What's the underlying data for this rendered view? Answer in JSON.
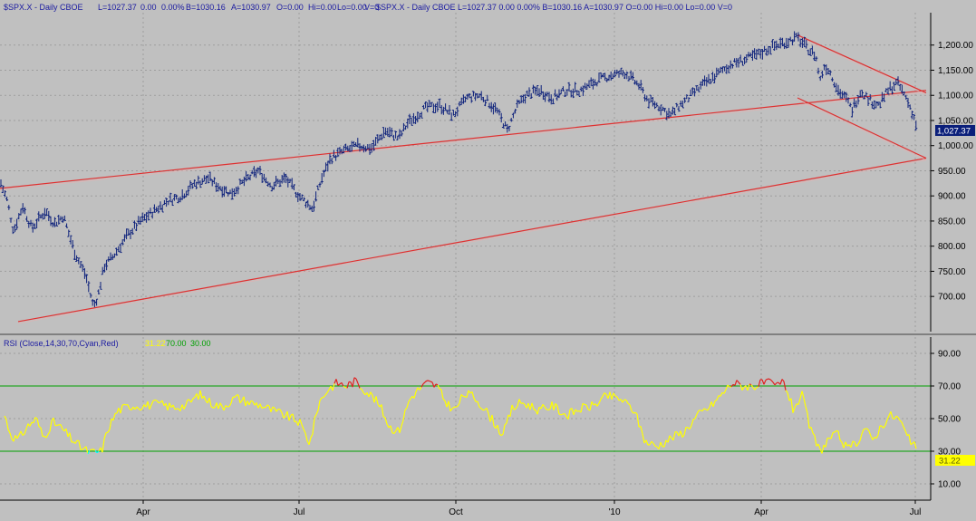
{
  "price_header": {
    "symbol": "$SPX.X - Daily CBOE",
    "last": "L=1027.37",
    "change": "0.00",
    "change_pct": "0.00%",
    "bid": "B=1030.16",
    "ask": "A=1030.97",
    "open": "O=0.00",
    "high": "Hi=0.00",
    "low": "Lo=0.00",
    "volume": "V=0",
    "secondary": "$SPX.X - Daily CBOE  L=1027.37  0.00  0.00%  B=1030.16  A=1030.97  O=0.00  Hi=0.00  Lo=0.00  V=0"
  },
  "rsi_header": {
    "label": "RSI (Close,14,30,70,Cyan,Red)",
    "value": "31.22",
    "upper": "70.00",
    "lower": "30.00"
  },
  "last_price_badge": "1,027.37",
  "rsi_value_badge": "31.22",
  "colors": {
    "background": "#c0c0c0",
    "bars": "#0b1f7a",
    "channel": "#e03030",
    "rsi_line": "#ffff00",
    "rsi_overbought": "#e02020",
    "rsi_oversold": "#00ffff",
    "rsi_levels": "#00a000",
    "grid": "#9e9e9e"
  },
  "chart_data": [
    {
      "type": "line",
      "subtype": "ohlc-bars",
      "title": "",
      "xlabel": "",
      "ylabel": "",
      "ylim": [
        630,
        1250
      ],
      "y_ticks": [
        700,
        750,
        800,
        850,
        900,
        950,
        1000,
        1050,
        1100,
        1150,
        1200
      ],
      "y_tick_labels": [
        "700.00",
        "750.00",
        "800.00",
        "850.00",
        "900.00",
        "950.00",
        "1,000.00",
        "1,050.00",
        "1,100.00",
        "1,150.00",
        "1,200.00"
      ],
      "x_tick_labels": [
        "Apr",
        "Jul",
        "Oct",
        "'10",
        "Apr",
        "Jul"
      ],
      "grid": true,
      "series": [
        {
          "values": [
            [
              0,
              930
            ],
            [
              8,
              890
            ],
            [
              15,
              830
            ],
            [
              25,
              880
            ],
            [
              35,
              835
            ],
            [
              50,
              870
            ],
            [
              60,
              845
            ],
            [
              70,
              860
            ],
            [
              82,
              790
            ],
            [
              95,
              740
            ],
            [
              103,
              680
            ],
            [
              108,
              700
            ],
            [
              115,
              760
            ],
            [
              125,
              780
            ],
            [
              140,
              820
            ],
            [
              155,
              850
            ],
            [
              170,
              870
            ],
            [
              185,
              890
            ],
            [
              200,
              900
            ],
            [
              215,
              925
            ],
            [
              230,
              935
            ],
            [
              240,
              920
            ],
            [
              255,
              905
            ],
            [
              270,
              930
            ],
            [
              285,
              950
            ],
            [
              300,
              920
            ],
            [
              315,
              935
            ],
            [
              330,
              900
            ],
            [
              345,
              875
            ],
            [
              355,
              935
            ],
            [
              365,
              975
            ],
            [
              380,
              990
            ],
            [
              395,
              1000
            ],
            [
              410,
              995
            ],
            [
              425,
              1030
            ],
            [
              440,
              1015
            ],
            [
              450,
              1045
            ],
            [
              460,
              1060
            ],
            [
              470,
              1075
            ],
            [
              485,
              1080
            ],
            [
              500,
              1060
            ],
            [
              515,
              1095
            ],
            [
              530,
              1100
            ],
            [
              540,
              1085
            ],
            [
              548,
              1070
            ],
            [
              560,
              1030
            ],
            [
              570,
              1075
            ],
            [
              580,
              1100
            ],
            [
              595,
              1110
            ],
            [
              610,
              1095
            ],
            [
              625,
              1110
            ],
            [
              640,
              1110
            ],
            [
              660,
              1130
            ],
            [
              675,
              1140
            ],
            [
              690,
              1145
            ],
            [
              705,
              1120
            ],
            [
              715,
              1090
            ],
            [
              730,
              1075
            ],
            [
              740,
              1060
            ],
            [
              750,
              1080
            ],
            [
              760,
              1095
            ],
            [
              775,
              1120
            ],
            [
              790,
              1140
            ],
            [
              805,
              1160
            ],
            [
              820,
              1170
            ],
            [
              835,
              1180
            ],
            [
              850,
              1195
            ],
            [
              865,
              1205
            ],
            [
              880,
              1215
            ],
            [
              890,
              1195
            ],
            [
              900,
              1180
            ],
            [
              905,
              1130
            ],
            [
              910,
              1160
            ],
            [
              915,
              1150
            ],
            [
              925,
              1110
            ],
            [
              935,
              1090
            ],
            [
              940,
              1070
            ],
            [
              950,
              1110
            ],
            [
              960,
              1090
            ],
            [
              970,
              1080
            ],
            [
              980,
              1110
            ],
            [
              990,
              1125
            ],
            [
              1000,
              1095
            ],
            [
              1008,
              1060
            ],
            [
              1013,
              1027
            ]
          ]
        }
      ],
      "trendlines": [
        {
          "from": [
            0,
            915
          ],
          "to": [
            1022,
            1110
          ]
        },
        {
          "from": [
            20,
            650
          ],
          "to": [
            1022,
            975
          ]
        },
        {
          "from": [
            880,
            1220
          ],
          "to": [
            1022,
            1105
          ]
        },
        {
          "from": [
            880,
            1095
          ],
          "to": [
            1022,
            975
          ]
        }
      ]
    },
    {
      "type": "line",
      "title": "",
      "xlabel": "",
      "ylabel": "",
      "ylim": [
        0,
        100
      ],
      "y_ticks": [
        10,
        30,
        50,
        70,
        90
      ],
      "y_tick_labels": [
        "10.00",
        "30.00",
        "50.00",
        "70.00",
        "90.00"
      ],
      "reference_lines": [
        70,
        30
      ],
      "x_tick_labels": [
        "Apr",
        "Jul",
        "Oct",
        "'10",
        "Apr",
        "Jul"
      ],
      "series": [
        {
          "values": [
            [
              5,
              52
            ],
            [
              12,
              40
            ],
            [
              20,
              37
            ],
            [
              30,
              45
            ],
            [
              40,
              50
            ],
            [
              48,
              38
            ],
            [
              58,
              48
            ],
            [
              68,
              44
            ],
            [
              78,
              38
            ],
            [
              90,
              32
            ],
            [
              100,
              29
            ],
            [
              112,
              30
            ],
            [
              120,
              45
            ],
            [
              130,
              55
            ],
            [
              145,
              58
            ],
            [
              160,
              58
            ],
            [
              175,
              59
            ],
            [
              190,
              57
            ],
            [
              205,
              58
            ],
            [
              220,
              65
            ],
            [
              232,
              60
            ],
            [
              245,
              57
            ],
            [
              260,
              63
            ],
            [
              275,
              60
            ],
            [
              290,
              58
            ],
            [
              300,
              55
            ],
            [
              315,
              52
            ],
            [
              330,
              48
            ],
            [
              342,
              35
            ],
            [
              352,
              60
            ],
            [
              362,
              68
            ],
            [
              372,
              72
            ],
            [
              382,
              70
            ],
            [
              392,
              73
            ],
            [
              402,
              68
            ],
            [
              412,
              63
            ],
            [
              420,
              57
            ],
            [
              430,
              45
            ],
            [
              440,
              42
            ],
            [
              452,
              62
            ],
            [
              462,
              68
            ],
            [
              472,
              72
            ],
            [
              482,
              70
            ],
            [
              492,
              60
            ],
            [
              502,
              55
            ],
            [
              512,
              65
            ],
            [
              522,
              64
            ],
            [
              532,
              58
            ],
            [
              545,
              48
            ],
            [
              555,
              40
            ],
            [
              565,
              56
            ],
            [
              575,
              60
            ],
            [
              585,
              58
            ],
            [
              595,
              55
            ],
            [
              610,
              58
            ],
            [
              625,
              52
            ],
            [
              640,
              56
            ],
            [
              655,
              58
            ],
            [
              670,
              64
            ],
            [
              685,
              62
            ],
            [
              700,
              55
            ],
            [
              712,
              36
            ],
            [
              725,
              33
            ],
            [
              740,
              38
            ],
            [
              755,
              42
            ],
            [
              770,
              52
            ],
            [
              785,
              58
            ],
            [
              795,
              64
            ],
            [
              808,
              72
            ],
            [
              820,
              70
            ],
            [
              832,
              70
            ],
            [
              845,
              72
            ],
            [
              858,
              70
            ],
            [
              865,
              73
            ],
            [
              875,
              56
            ],
            [
              885,
              64
            ],
            [
              895,
              42
            ],
            [
              905,
              30
            ],
            [
              915,
              38
            ],
            [
              925,
              40
            ],
            [
              935,
              31
            ],
            [
              945,
              35
            ],
            [
              955,
              45
            ],
            [
              962,
              36
            ],
            [
              972,
              45
            ],
            [
              982,
              52
            ],
            [
              992,
              50
            ],
            [
              1002,
              38
            ],
            [
              1012,
              31
            ]
          ]
        }
      ]
    }
  ]
}
